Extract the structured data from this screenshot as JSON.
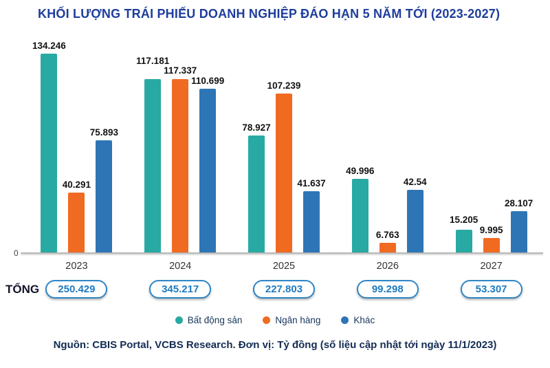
{
  "page": {
    "title": "KHỐI LƯỢNG TRÁI PHIẾU DOANH NGHIỆP ĐÁO HẠN 5 NĂM TỚI (2023-2027)",
    "source_note": "Nguồn: CBIS Portal, VCBS Research. Đơn vị: Tỷ đồng (số liệu cập nhật tới ngày 11/1/2023)",
    "totals_label": "TỔNG",
    "y_axis_zero": "0"
  },
  "colors": {
    "real_estate": "#29a9a3",
    "bank": "#f16a22",
    "other": "#2e75b6",
    "title_text": "#1d3d9c",
    "pill_text": "#1e7ac0",
    "pill_border": "#2e86c8"
  },
  "chart_data": {
    "type": "bar",
    "title": "KHỐI LƯỢNG TRÁI PHIẾU DOANH NGHIỆP ĐÁO HẠN 5 NĂM TỚI (2023-2027)",
    "unit": "Tỷ đồng",
    "categories": [
      "2023",
      "2024",
      "2025",
      "2026",
      "2027"
    ],
    "series": [
      {
        "name": "Bất động sản",
        "key": "bat-dong-san",
        "color": "#29a9a3",
        "values": [
          134.246,
          117.181,
          78.927,
          49.996,
          15.205
        ],
        "labels": [
          "134.246",
          "117.181",
          "78.927",
          "49.996",
          "15.205"
        ]
      },
      {
        "name": "Ngân hàng",
        "key": "ngan-hang",
        "color": "#f16a22",
        "values": [
          40.291,
          117.337,
          107.239,
          6.763,
          9.995
        ],
        "labels": [
          "40.291",
          "117.337",
          "107.239",
          "6.763",
          "9.995"
        ]
      },
      {
        "name": "Khác",
        "key": "khac",
        "color": "#2e75b6",
        "values": [
          75.893,
          110.699,
          41.637,
          42.54,
          28.107
        ],
        "labels": [
          "75.893",
          "110.699",
          "41.637",
          "42.54",
          "28.107"
        ]
      }
    ],
    "totals": [
      "250.429",
      "345.217",
      "227.803",
      "99.298",
      "53.307"
    ],
    "ylim": [
      0,
      140
    ],
    "grid": false,
    "legend_position": "bottom"
  }
}
